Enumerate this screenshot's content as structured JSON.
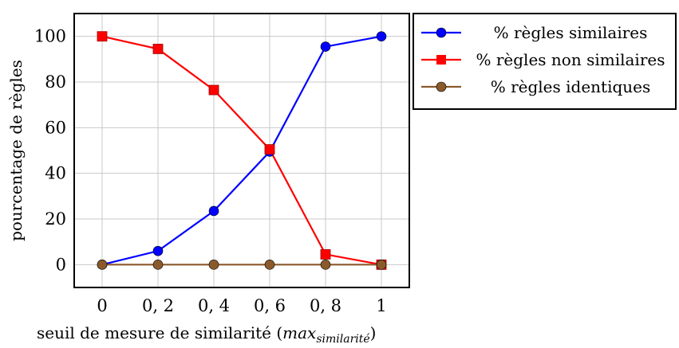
{
  "chart_data": {
    "type": "line",
    "x": [
      0,
      0.2,
      0.4,
      0.6,
      0.8,
      1
    ],
    "x_tick_labels": [
      "0",
      "0, 2",
      "0, 4",
      "0, 6",
      "0, 8",
      "1"
    ],
    "y_ticks": [
      0,
      20,
      40,
      60,
      80,
      100
    ],
    "xlim": [
      -0.1,
      1.1
    ],
    "ylim": [
      -10,
      110
    ],
    "xlabel_main": "seuil de mesure de similarité (",
    "xlabel_math": "max",
    "xlabel_sub": "similarité",
    "xlabel_close": ")",
    "ylabel": "pourcentage de règles",
    "grid": true,
    "legend_position": "outside-right",
    "series": [
      {
        "name": "% règles similaires",
        "color": "#0000ff",
        "marker": "circle",
        "values": [
          0,
          6,
          23.5,
          49.5,
          95.5,
          100
        ]
      },
      {
        "name": "% règles non similaires",
        "color": "#ff0000",
        "marker": "square",
        "values": [
          100,
          94.5,
          76.5,
          50.5,
          4.5,
          0
        ]
      },
      {
        "name": "% règles identiques",
        "color": "#8a5a2b",
        "marker": "circle",
        "values": [
          0,
          0,
          0,
          0,
          0,
          0
        ]
      }
    ]
  }
}
